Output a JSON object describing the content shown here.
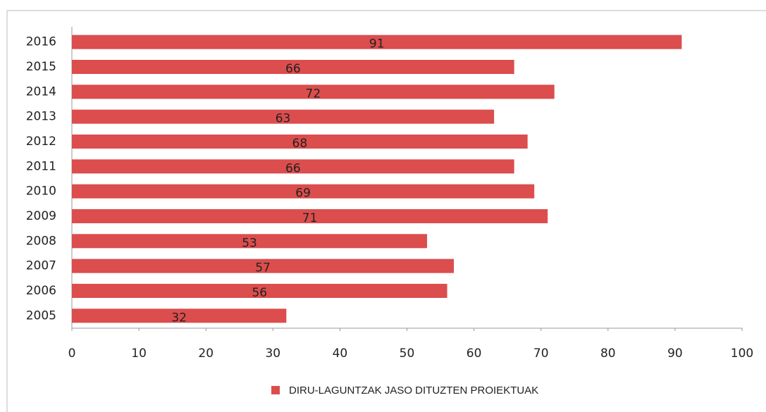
{
  "chart_data": {
    "type": "bar",
    "orientation": "horizontal",
    "categories": [
      "2016",
      "2015",
      "2014",
      "2013",
      "2012",
      "2011",
      "2010",
      "2009",
      "2008",
      "2007",
      "2006",
      "2005"
    ],
    "series": [
      {
        "name": "DIRU-LAGUNTZAK JASO DITUZTEN PROIEKTUAK",
        "color": "#dc4d4d",
        "values": [
          91,
          66,
          72,
          63,
          68,
          66,
          69,
          71,
          53,
          57,
          56,
          32
        ]
      }
    ],
    "xlim": [
      0,
      100
    ],
    "xticks": [
      0,
      10,
      20,
      30,
      40,
      50,
      60,
      70,
      80,
      90,
      100
    ],
    "legend": "bottom"
  }
}
